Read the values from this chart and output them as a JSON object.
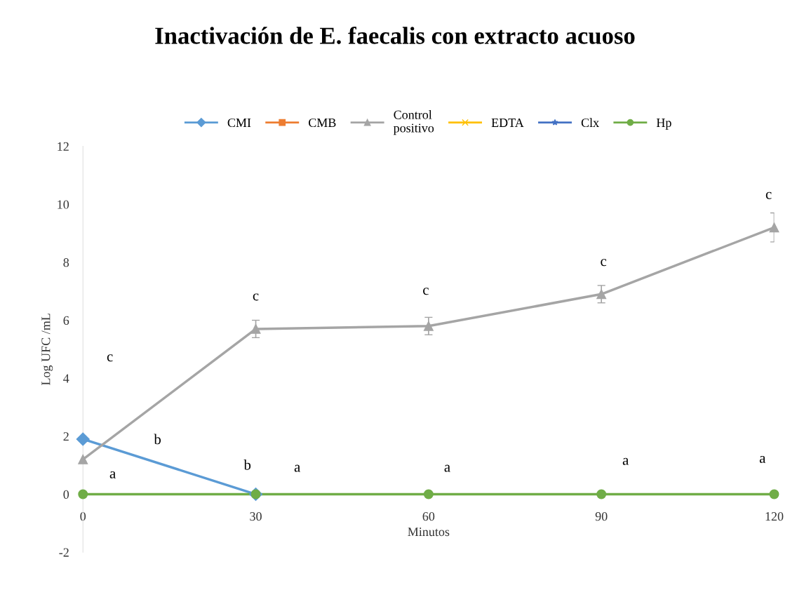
{
  "chart_data": {
    "type": "line",
    "title": "Inactivación de E. faecalis con extracto acuoso",
    "xlabel": "Minutos",
    "ylabel": "Log UFC /mL",
    "x": [
      0,
      30,
      60,
      90,
      120
    ],
    "series": [
      {
        "name": "CMI",
        "color": "#5b9bd5",
        "marker": "diamond",
        "values": [
          1.9,
          0,
          null,
          null,
          null
        ]
      },
      {
        "name": "CMB",
        "color": "#ed7d31",
        "marker": "square",
        "values": [
          null,
          null,
          null,
          null,
          null
        ]
      },
      {
        "name": "Control positivo",
        "color": "#a5a5a5",
        "marker": "triangle",
        "values": [
          1.2,
          5.7,
          5.8,
          6.9,
          9.2
        ],
        "errors": [
          null,
          0.3,
          0.3,
          0.3,
          0.5
        ]
      },
      {
        "name": "EDTA",
        "color": "#ffc000",
        "marker": "cross",
        "values": [
          null,
          null,
          null,
          null,
          null
        ]
      },
      {
        "name": "Clx",
        "color": "#4472c4",
        "marker": "star",
        "values": [
          null,
          null,
          null,
          null,
          null
        ]
      },
      {
        "name": "Hp",
        "color": "#70ad47",
        "marker": "circle",
        "values": [
          0,
          0,
          0,
          0,
          0
        ]
      }
    ],
    "xlim": [
      0,
      120
    ],
    "xticks": [
      0,
      30,
      60,
      90,
      120
    ],
    "ylim": [
      -2,
      12
    ],
    "yticks": [
      -2,
      0,
      2,
      4,
      6,
      8,
      10,
      12
    ],
    "grid": false,
    "legend": "top",
    "line_style": "solid",
    "annotations": [
      "c",
      "b",
      "a",
      "c",
      "b",
      "a",
      "c",
      "a",
      "c",
      "a",
      "c",
      "a"
    ]
  }
}
